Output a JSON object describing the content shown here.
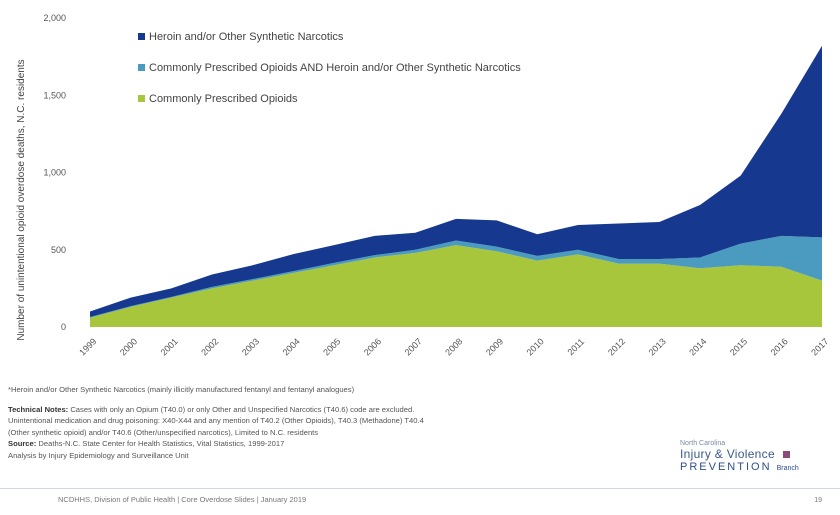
{
  "chart_data": {
    "type": "area",
    "stacked": true,
    "x": [
      "1999",
      "2000",
      "2001",
      "2002",
      "2003",
      "2004",
      "2005",
      "2006",
      "2007",
      "2008",
      "2009",
      "2010",
      "2011",
      "2012",
      "2013",
      "2014",
      "2015",
      "2016",
      "2017"
    ],
    "ylim": [
      0,
      2000
    ],
    "yticks": [
      "0",
      "500",
      "1,000",
      "1,500",
      "2,000"
    ],
    "ylabel": "Number of unintentional opioid overdose deaths, N.C. residents",
    "legend_position": "top-left",
    "series": [
      {
        "name": "Commonly Prescribed Opioids",
        "color": "#a8c63c",
        "values": [
          60,
          130,
          190,
          250,
          300,
          350,
          400,
          450,
          480,
          530,
          490,
          430,
          470,
          410,
          410,
          380,
          400,
          390,
          300
        ]
      },
      {
        "name": "Commonly Prescribed Opioids AND Heroin and/or Other Synthetic Narcotics",
        "color": "#4a9bbf",
        "values": [
          5,
          5,
          5,
          10,
          10,
          12,
          15,
          15,
          20,
          30,
          30,
          30,
          30,
          30,
          30,
          70,
          140,
          200,
          280
        ]
      },
      {
        "name": "Heroin and/or Other Synthetic Narcotics",
        "color": "#16398f",
        "values": [
          35,
          55,
          55,
          80,
          90,
          110,
          115,
          125,
          110,
          140,
          170,
          140,
          160,
          230,
          240,
          340,
          440,
          790,
          1240
        ]
      }
    ]
  },
  "notes": {
    "footnote": "*Heroin and/or Other Synthetic Narcotics (mainly illicitly manufactured fentanyl and fentanyl analogues)",
    "tech_label": "Technical Notes:",
    "tech_line1": "Cases with only an Opium (T40.0) or only Other and Unspecified Narcotics (T40.6) code are excluded.",
    "tech_line2": "Unintentional medication and drug poisoning: X40-X44 and any mention of T40.2 (Other Opioids), T40.3 (Methadone) T40.4",
    "tech_line3": "(Other synthetic opioid) and/or T40.6 (Other/unspecified narcotics), Limited to N.C. residents",
    "source_label": "Source:",
    "source_text": "Deaths-N.C. State Center for Health Statistics, Vital Statistics, 1999-2017",
    "analysis": "Analysis by Injury Epidemiology and Surveillance Unit"
  },
  "logo": {
    "state": "North Carolina",
    "line1": "Injury & Violence",
    "line2": "PREVENTION",
    "line2_sub": "Branch"
  },
  "footer": {
    "text": "NCDHHS, Division of Public Health | Core Overdose Slides | January 2019",
    "page": "19"
  }
}
